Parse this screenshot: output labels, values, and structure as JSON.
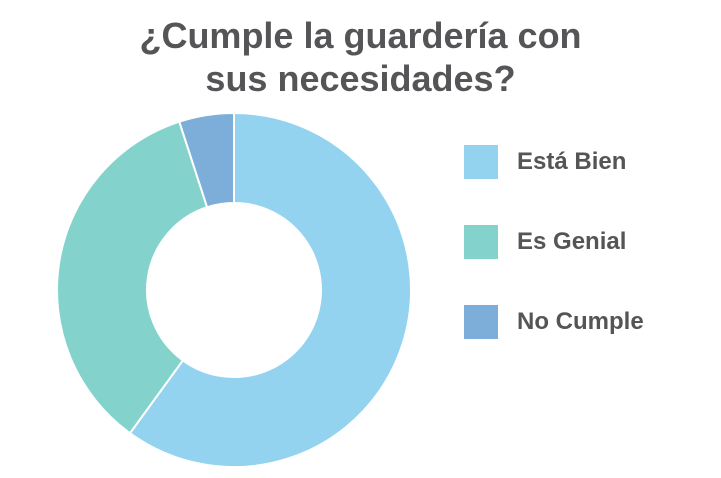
{
  "chart_data": {
    "type": "pie",
    "variant": "donut",
    "title_lines": [
      "¿Cumple la guardería con",
      "sus necesidades?"
    ],
    "categories": [
      "Está Bien",
      "Es Genial",
      "No Cumple"
    ],
    "values": [
      60,
      35,
      5
    ],
    "colors": [
      "#93d3f0",
      "#83d3cc",
      "#7daed9"
    ],
    "legend_position": "right",
    "start_angle_deg": 0,
    "direction": "clockwise"
  }
}
